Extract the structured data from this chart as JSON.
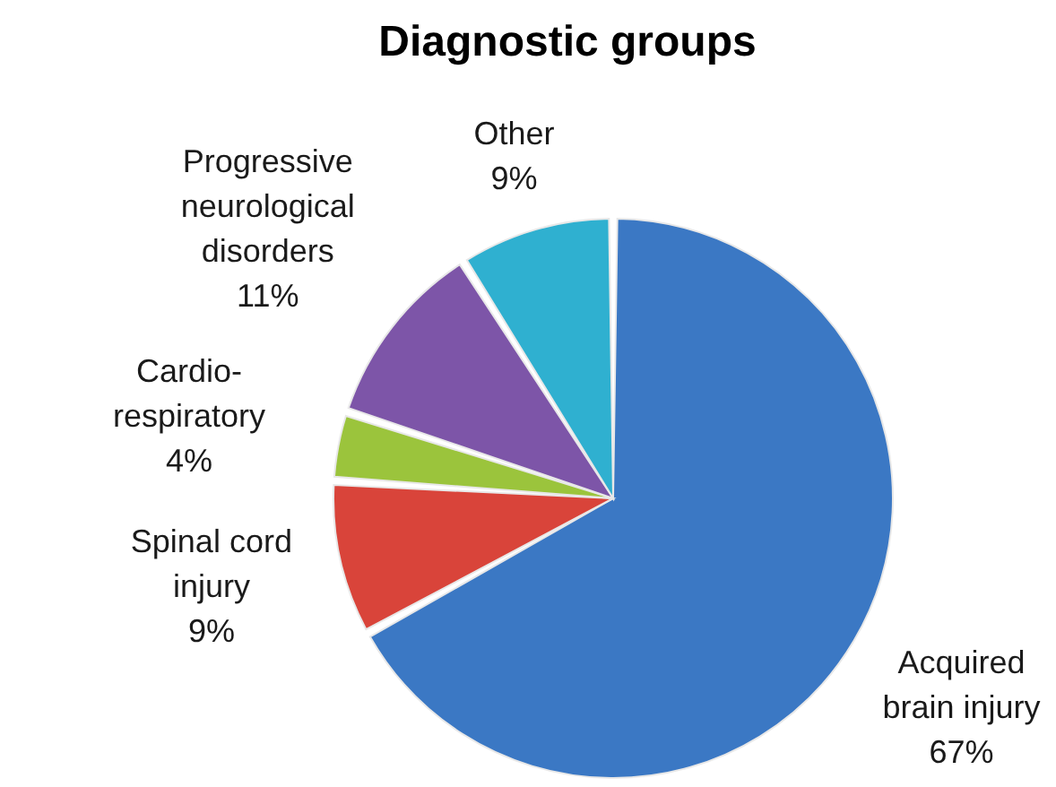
{
  "chart_data": {
    "type": "pie",
    "title": "Diagnostic groups",
    "categories": [
      "Acquired brain injury",
      "Spinal cord injury",
      "Cardio-respiratory",
      "Progressive neurological disorders",
      "Other"
    ],
    "values": [
      67,
      9,
      4,
      11,
      9
    ],
    "value_labels": [
      "67%",
      "9%",
      "4%",
      "11%",
      "9%"
    ],
    "colors": [
      "#3b78c4",
      "#d9443a",
      "#9bc43c",
      "#7d55a8",
      "#2fb0d0"
    ]
  }
}
